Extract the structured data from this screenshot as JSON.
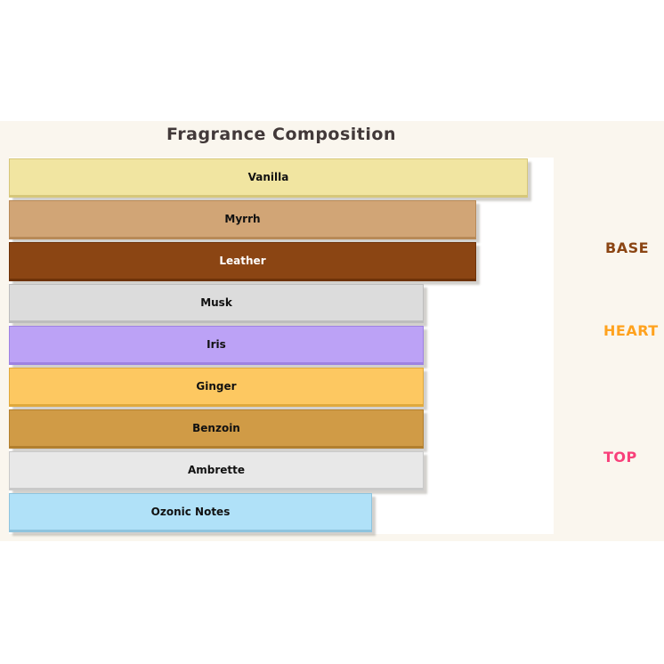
{
  "title": "Fragrance Composition",
  "chart_data": {
    "type": "bar",
    "orientation": "horizontal",
    "title": "Fragrance Composition",
    "categories": [
      "Vanilla",
      "Myrrh",
      "Leather",
      "Musk",
      "Iris",
      "Ginger",
      "Benzoin",
      "Ambrette",
      "Ozonic Notes"
    ],
    "values": [
      10,
      9,
      9,
      8,
      8,
      8,
      8,
      8,
      7
    ],
    "xlim": [
      0,
      10.5
    ],
    "grid": false,
    "bar_colors": [
      "#F1E5A1",
      "#D1A576",
      "#8B4513",
      "#DCDCDC",
      "#BCA2F6",
      "#FDC861",
      "#D09B46",
      "#E8E8E8",
      "#B0E1F8"
    ],
    "edge_colors": [
      "#D6C77A",
      "#B88A58",
      "#6E3208",
      "#BDBDBD",
      "#9E82E2",
      "#E0A93C",
      "#B27F2E",
      "#C9C9C9",
      "#8FC4DE"
    ],
    "bar_label_colors": [
      "#111111",
      "#111111",
      "#FFFFFF",
      "#111111",
      "#111111",
      "#111111",
      "#111111",
      "#111111",
      "#111111"
    ],
    "groups": [
      {
        "label": "BASE",
        "color": "#8B4513",
        "spans_bars": [
          "Vanilla",
          "Myrrh",
          "Leather"
        ]
      },
      {
        "label": "HEART",
        "color": "#FFA21E",
        "spans_bars": [
          "Musk",
          "Iris",
          "Ginger"
        ]
      },
      {
        "label": "TOP",
        "color": "#F8407A",
        "spans_bars": [
          "Benzoin",
          "Ambrette",
          "Ozonic Notes"
        ]
      }
    ],
    "legend": null
  },
  "colors": {
    "page_bg": "#FFFFFF",
    "panel_bg": "#FAF6EE",
    "plot_bg": "#FFFFFF",
    "title_text": "#423939"
  }
}
